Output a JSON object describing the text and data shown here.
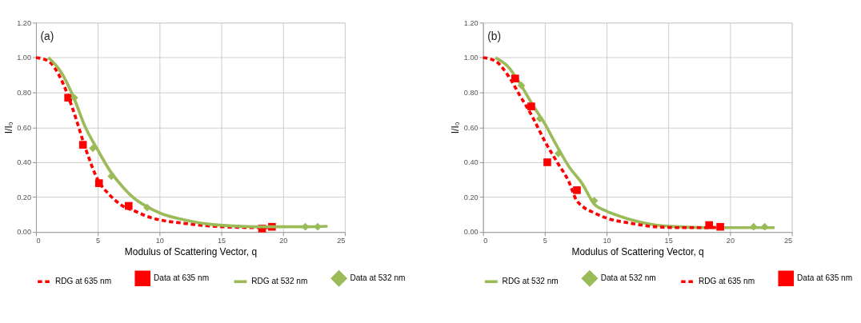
{
  "chart_data": [
    {
      "type": "line",
      "annotations": [
        "(a)"
      ],
      "xlabel": "Modulus of Scattering Vector, q",
      "ylabel": "I/I₀",
      "xlim": [
        0,
        25
      ],
      "xticks": [
        0,
        5,
        10,
        15,
        20,
        25
      ],
      "ylim": [
        0,
        1.2
      ],
      "yticks": [
        {
          "value": 0,
          "label": "0.00"
        },
        {
          "value": 0.2,
          "label": "0.20"
        },
        {
          "value": 0.4,
          "label": "0.40"
        },
        {
          "value": 0.6,
          "label": "0.60"
        },
        {
          "value": 0.8,
          "label": "0.80"
        },
        {
          "value": 1.0,
          "label": "1.00"
        },
        {
          "value": 1.2,
          "label": "1.20"
        }
      ],
      "grid": true,
      "legend": "bottom",
      "series": [
        {
          "name": "RDG at 635 nm",
          "type": "line",
          "line_style": "dashed",
          "marker": "none",
          "color": "#ff0000",
          "x": [
            0,
            1,
            2,
            3,
            4,
            5,
            6,
            7,
            8,
            9,
            10,
            12,
            14,
            16,
            18,
            19
          ],
          "values": [
            1.0,
            0.98,
            0.88,
            0.7,
            0.48,
            0.3,
            0.21,
            0.15,
            0.12,
            0.09,
            0.07,
            0.05,
            0.035,
            0.028,
            0.025,
            0.025
          ]
        },
        {
          "name": "Data at 635 nm",
          "type": "scatter",
          "marker": "square",
          "color": "#ff0000",
          "x": [
            2.6,
            3.8,
            5.1,
            7.5,
            18.3,
            19.1
          ],
          "values": [
            0.77,
            0.5,
            0.28,
            0.15,
            0.02,
            0.03
          ]
        },
        {
          "name": "RDG at 532 nm",
          "type": "line",
          "line_style": "solid",
          "marker": "none",
          "color": "#9bbb59",
          "x": [
            1,
            2,
            3,
            4,
            5,
            6,
            7,
            8,
            9,
            10,
            12,
            14,
            16,
            18,
            20,
            22,
            23.6
          ],
          "values": [
            1.0,
            0.92,
            0.78,
            0.6,
            0.47,
            0.35,
            0.26,
            0.19,
            0.145,
            0.11,
            0.07,
            0.045,
            0.035,
            0.03,
            0.03,
            0.03,
            0.033
          ]
        },
        {
          "name": "Data at 532 nm",
          "type": "scatter",
          "marker": "diamond",
          "color": "#9bbb59",
          "x": [
            3.1,
            4.6,
            6.1,
            9.0,
            21.8,
            22.8
          ],
          "values": [
            0.77,
            0.48,
            0.32,
            0.14,
            0.03,
            0.03
          ]
        }
      ]
    },
    {
      "type": "line",
      "annotations": [
        "(b)"
      ],
      "xlabel": "Modulus of Scattering Vector, q",
      "ylabel": "I/I₀",
      "xlim": [
        0,
        25
      ],
      "xticks": [
        0,
        5,
        10,
        15,
        20,
        25
      ],
      "ylim": [
        0,
        1.2
      ],
      "yticks": [
        {
          "value": 0,
          "label": "0.00"
        },
        {
          "value": 0.2,
          "label": "0.20"
        },
        {
          "value": 0.4,
          "label": "0.40"
        },
        {
          "value": 0.6,
          "label": "0.60"
        },
        {
          "value": 0.8,
          "label": "0.80"
        },
        {
          "value": 1.0,
          "label": "1.00"
        },
        {
          "value": 1.2,
          "label": "1.20"
        }
      ],
      "grid": true,
      "legend": "bottom",
      "series": [
        {
          "name": "RDG at 532 nm",
          "type": "line",
          "line_style": "solid",
          "marker": "none",
          "color": "#9bbb59",
          "x": [
            1,
            2,
            3,
            4,
            5,
            6,
            7,
            8,
            9,
            10,
            12,
            14,
            16,
            18,
            20,
            22,
            23.6
          ],
          "values": [
            1.0,
            0.95,
            0.85,
            0.73,
            0.62,
            0.49,
            0.37,
            0.28,
            0.16,
            0.12,
            0.07,
            0.04,
            0.03,
            0.025,
            0.025,
            0.025,
            0.025
          ]
        },
        {
          "name": "Data at 532 nm",
          "type": "scatter",
          "marker": "diamond",
          "color": "#9bbb59",
          "x": [
            3.1,
            4.6,
            6.1,
            9.0,
            21.9,
            22.8
          ],
          "values": [
            0.84,
            0.65,
            0.45,
            0.18,
            0.03,
            0.03
          ]
        },
        {
          "name": "RDG at 635 nm",
          "type": "line",
          "line_style": "dashed",
          "marker": "none",
          "color": "#ff0000",
          "x": [
            0,
            1,
            2,
            3,
            4,
            5,
            6,
            7,
            7.5,
            8,
            9,
            10,
            12,
            14,
            16,
            18,
            19
          ],
          "values": [
            1.0,
            0.98,
            0.9,
            0.78,
            0.66,
            0.52,
            0.4,
            0.28,
            0.19,
            0.15,
            0.11,
            0.08,
            0.05,
            0.03,
            0.025,
            0.025,
            0.027
          ]
        },
        {
          "name": "Data at 635 nm",
          "type": "scatter",
          "marker": "square",
          "color": "#ff0000",
          "x": [
            2.6,
            3.9,
            5.2,
            7.6,
            18.3,
            19.2
          ],
          "values": [
            0.88,
            0.72,
            0.4,
            0.24,
            0.04,
            0.03
          ]
        }
      ]
    }
  ]
}
